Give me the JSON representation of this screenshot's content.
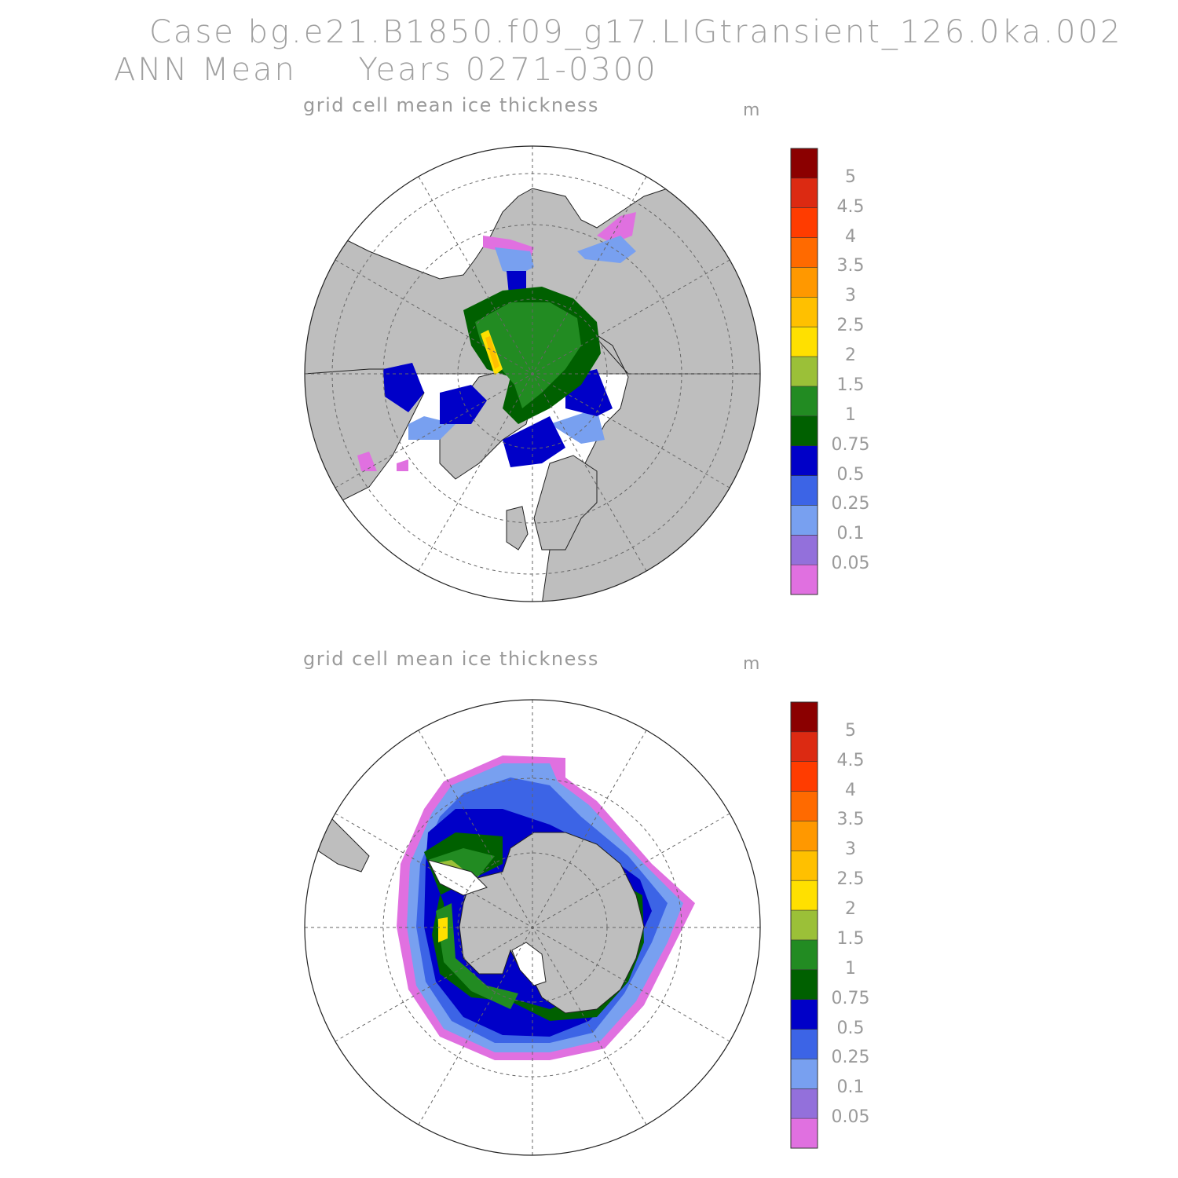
{
  "header": {
    "case_line": "Case bg.e21.B1850.f09_g17.LIGtransient_126.0ka.002",
    "period_line": "ANN Mean     Years 0271-0300"
  },
  "panels": [
    {
      "id": "north",
      "title": "grid cell mean ice thickness",
      "unit": "m",
      "hemisphere": "Northern Hemisphere polar stereographic"
    },
    {
      "id": "south",
      "title": "grid cell mean ice thickness",
      "unit": "m",
      "hemisphere": "Southern Hemisphere polar stereographic"
    }
  ],
  "colorbar": {
    "labels": [
      "5",
      "4.5",
      "4",
      "3.5",
      "3",
      "2.5",
      "2",
      "1.5",
      "1",
      "0.75",
      "0.5",
      "0.25",
      "0.1",
      "0.05"
    ],
    "colors_top_to_bottom": [
      "#8b0000",
      "#dc2a12",
      "#ff3c00",
      "#ff6a00",
      "#ff9800",
      "#ffc000",
      "#ffe000",
      "#9bc038",
      "#228b22",
      "#006000",
      "#0000c8",
      "#3c64e6",
      "#78a0f0",
      "#9370db",
      "#e070e0"
    ]
  },
  "colors": {
    "land": "#bebebe",
    "ocean": "#ffffff",
    "grid": "#666666"
  }
}
